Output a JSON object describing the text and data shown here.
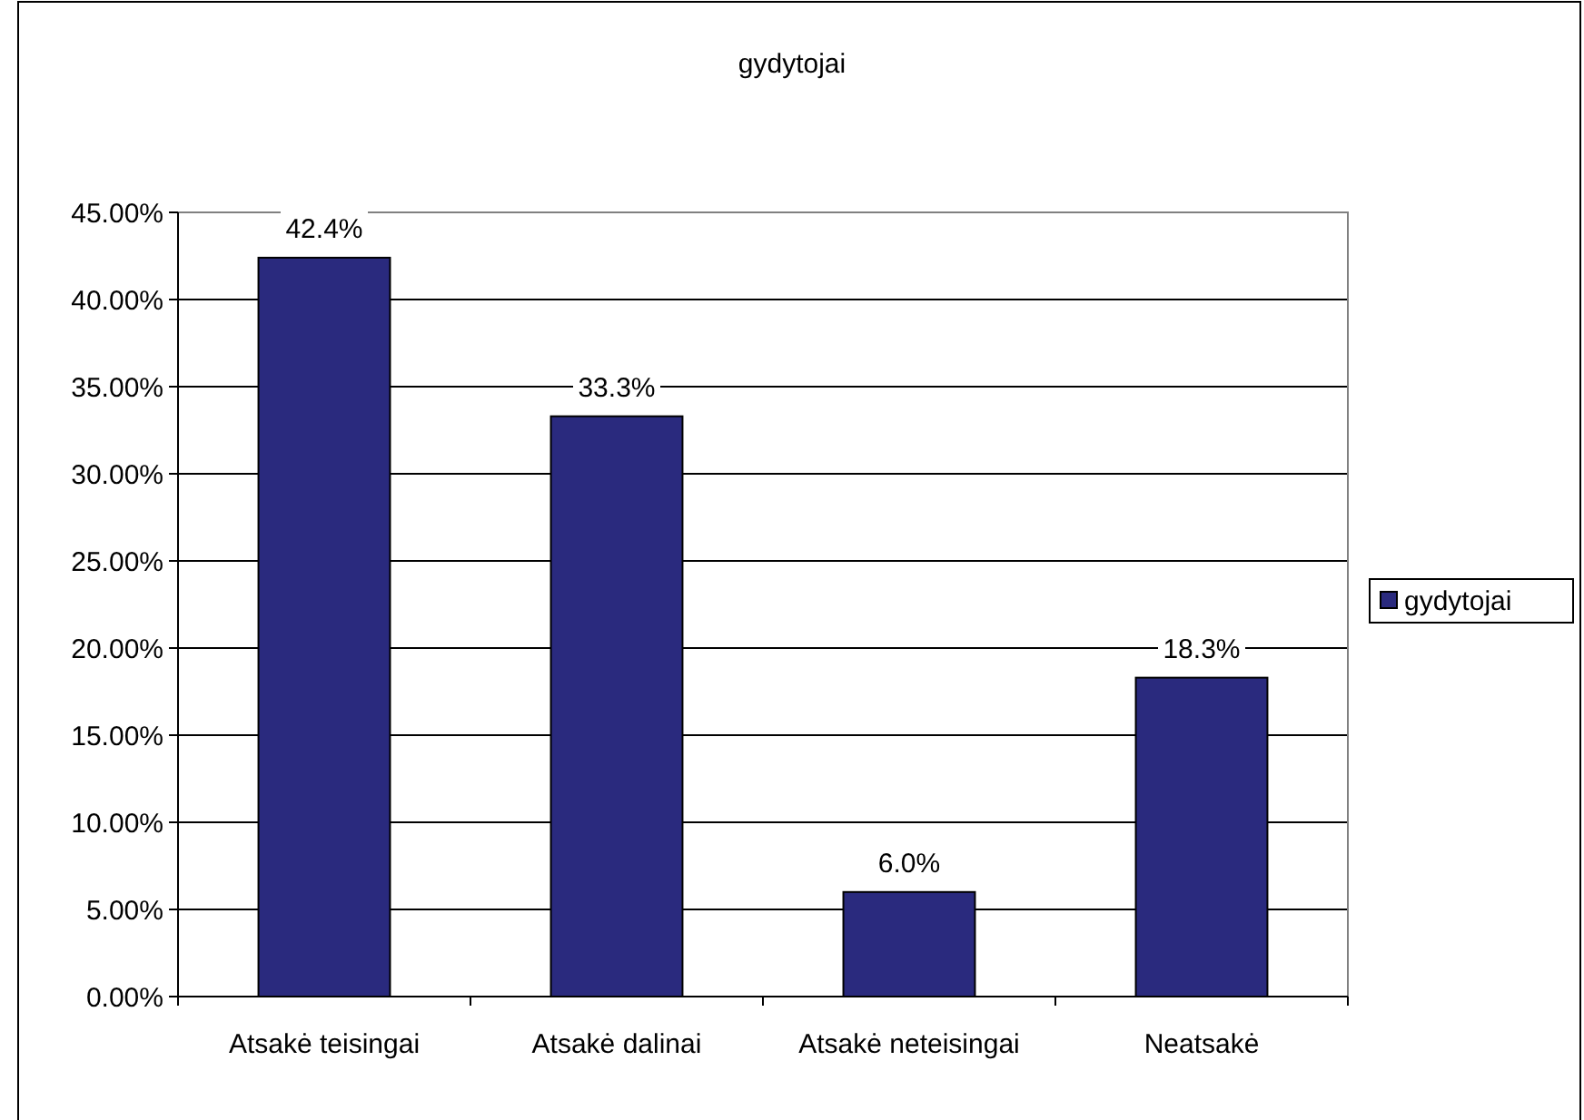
{
  "chart_data": {
    "type": "bar",
    "title": "gydytojai",
    "categories": [
      "Atsakė teisingai",
      "Atsakė dalinai",
      "Atsakė neteisingai",
      "Neatsakė"
    ],
    "series": [
      {
        "name": "gydytojai",
        "color": "#2a2a7e",
        "values": [
          42.4,
          33.3,
          6.0,
          18.3
        ],
        "value_labels": [
          "42.4%",
          "33.3%",
          "6.0%",
          "18.3%"
        ]
      }
    ],
    "ylim": [
      0,
      45
    ],
    "yticks": [
      {
        "value": 0,
        "label": "0.00%"
      },
      {
        "value": 5,
        "label": "5.00%"
      },
      {
        "value": 10,
        "label": "10.00%"
      },
      {
        "value": 15,
        "label": "15.00%"
      },
      {
        "value": 20,
        "label": "20.00%"
      },
      {
        "value": 25,
        "label": "25.00%"
      },
      {
        "value": 30,
        "label": "30.00%"
      },
      {
        "value": 35,
        "label": "35.00%"
      },
      {
        "value": 40,
        "label": "40.00%"
      },
      {
        "value": 45,
        "label": "45.00%"
      }
    ],
    "grid": "y",
    "legend": "right"
  }
}
